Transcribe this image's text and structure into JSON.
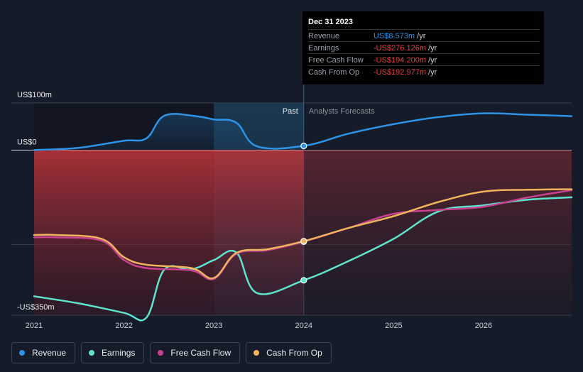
{
  "chart_data": {
    "type": "line",
    "unit": "US$m",
    "y_ticks": [
      {
        "value": 100,
        "label": "US$100m"
      },
      {
        "value": 0,
        "label": "US$0"
      },
      {
        "value": -350,
        "label": "-US$350m"
      }
    ],
    "ylim": [
      -350,
      100
    ],
    "x_ticks": [
      "2021",
      "2022",
      "2023",
      "2024",
      "2025",
      "2026"
    ],
    "xlim": [
      2021.0,
      2026.98
    ],
    "divider_x": 2024.0,
    "past_label": "Past",
    "forecast_label": "Analysts Forecasts",
    "grid": true,
    "legend_position": "bottom-left",
    "series": [
      {
        "name": "Revenue",
        "color": "#2e93e6",
        "points": [
          [
            2021.0,
            0
          ],
          [
            2021.5,
            5
          ],
          [
            2022.0,
            20
          ],
          [
            2022.25,
            25
          ],
          [
            2022.45,
            73
          ],
          [
            2022.8,
            72
          ],
          [
            2023.0,
            65
          ],
          [
            2023.25,
            58
          ],
          [
            2023.48,
            8
          ],
          [
            2024.0,
            9
          ],
          [
            2024.5,
            35
          ],
          [
            2025.0,
            55
          ],
          [
            2025.5,
            70
          ],
          [
            2026.0,
            78
          ],
          [
            2026.5,
            75
          ],
          [
            2026.98,
            72
          ]
        ]
      },
      {
        "name": "Earnings",
        "color": "#5fe3cc",
        "points": [
          [
            2021.0,
            -310
          ],
          [
            2021.5,
            -325
          ],
          [
            2022.0,
            -345
          ],
          [
            2022.25,
            -355
          ],
          [
            2022.45,
            -253
          ],
          [
            2022.75,
            -253
          ],
          [
            2023.0,
            -233
          ],
          [
            2023.25,
            -217
          ],
          [
            2023.48,
            -303
          ],
          [
            2024.0,
            -276
          ],
          [
            2024.5,
            -235
          ],
          [
            2025.0,
            -188
          ],
          [
            2025.5,
            -130
          ],
          [
            2026.0,
            -117
          ],
          [
            2026.5,
            -105
          ],
          [
            2026.98,
            -100
          ]
        ]
      },
      {
        "name": "Free Cash Flow",
        "color": "#c6428f",
        "points": [
          [
            2021.0,
            -185
          ],
          [
            2021.25,
            -185
          ],
          [
            2021.75,
            -192
          ],
          [
            2022.0,
            -233
          ],
          [
            2022.25,
            -250
          ],
          [
            2022.75,
            -255
          ],
          [
            2023.0,
            -273
          ],
          [
            2023.25,
            -220
          ],
          [
            2023.6,
            -212
          ],
          [
            2024.0,
            -194
          ],
          [
            2024.5,
            -165
          ],
          [
            2025.0,
            -135
          ],
          [
            2025.5,
            -127
          ],
          [
            2026.0,
            -120
          ],
          [
            2026.5,
            -100
          ],
          [
            2026.98,
            -85
          ]
        ]
      },
      {
        "name": "Cash From Op",
        "color": "#f0b45f",
        "points": [
          [
            2021.0,
            -180
          ],
          [
            2021.25,
            -180
          ],
          [
            2021.75,
            -188
          ],
          [
            2022.0,
            -227
          ],
          [
            2022.25,
            -243
          ],
          [
            2022.75,
            -250
          ],
          [
            2023.0,
            -271
          ],
          [
            2023.25,
            -218
          ],
          [
            2023.6,
            -210
          ],
          [
            2024.0,
            -193
          ],
          [
            2024.5,
            -165
          ],
          [
            2025.0,
            -140
          ],
          [
            2025.5,
            -110
          ],
          [
            2026.0,
            -88
          ],
          [
            2026.5,
            -84
          ],
          [
            2026.98,
            -83
          ]
        ]
      }
    ]
  },
  "tooltip": {
    "date": "Dec 31 2023",
    "rows": [
      {
        "label": "Revenue",
        "value": "US$8.573m",
        "unit": " /yr",
        "color": "#2e93e6"
      },
      {
        "label": "Earnings",
        "value": "-US$276.126m",
        "unit": " /yr",
        "color": "#e8423f"
      },
      {
        "label": "Free Cash Flow",
        "value": "-US$194.200m",
        "unit": " /yr",
        "color": "#e8423f"
      },
      {
        "label": "Cash From Op",
        "value": "-US$192.977m",
        "unit": " /yr",
        "color": "#e8423f"
      }
    ]
  },
  "legend": [
    {
      "label": "Revenue",
      "color": "#2e93e6"
    },
    {
      "label": "Earnings",
      "color": "#5fe3cc"
    },
    {
      "label": "Free Cash Flow",
      "color": "#c6428f"
    },
    {
      "label": "Cash From Op",
      "color": "#f0b45f"
    }
  ]
}
